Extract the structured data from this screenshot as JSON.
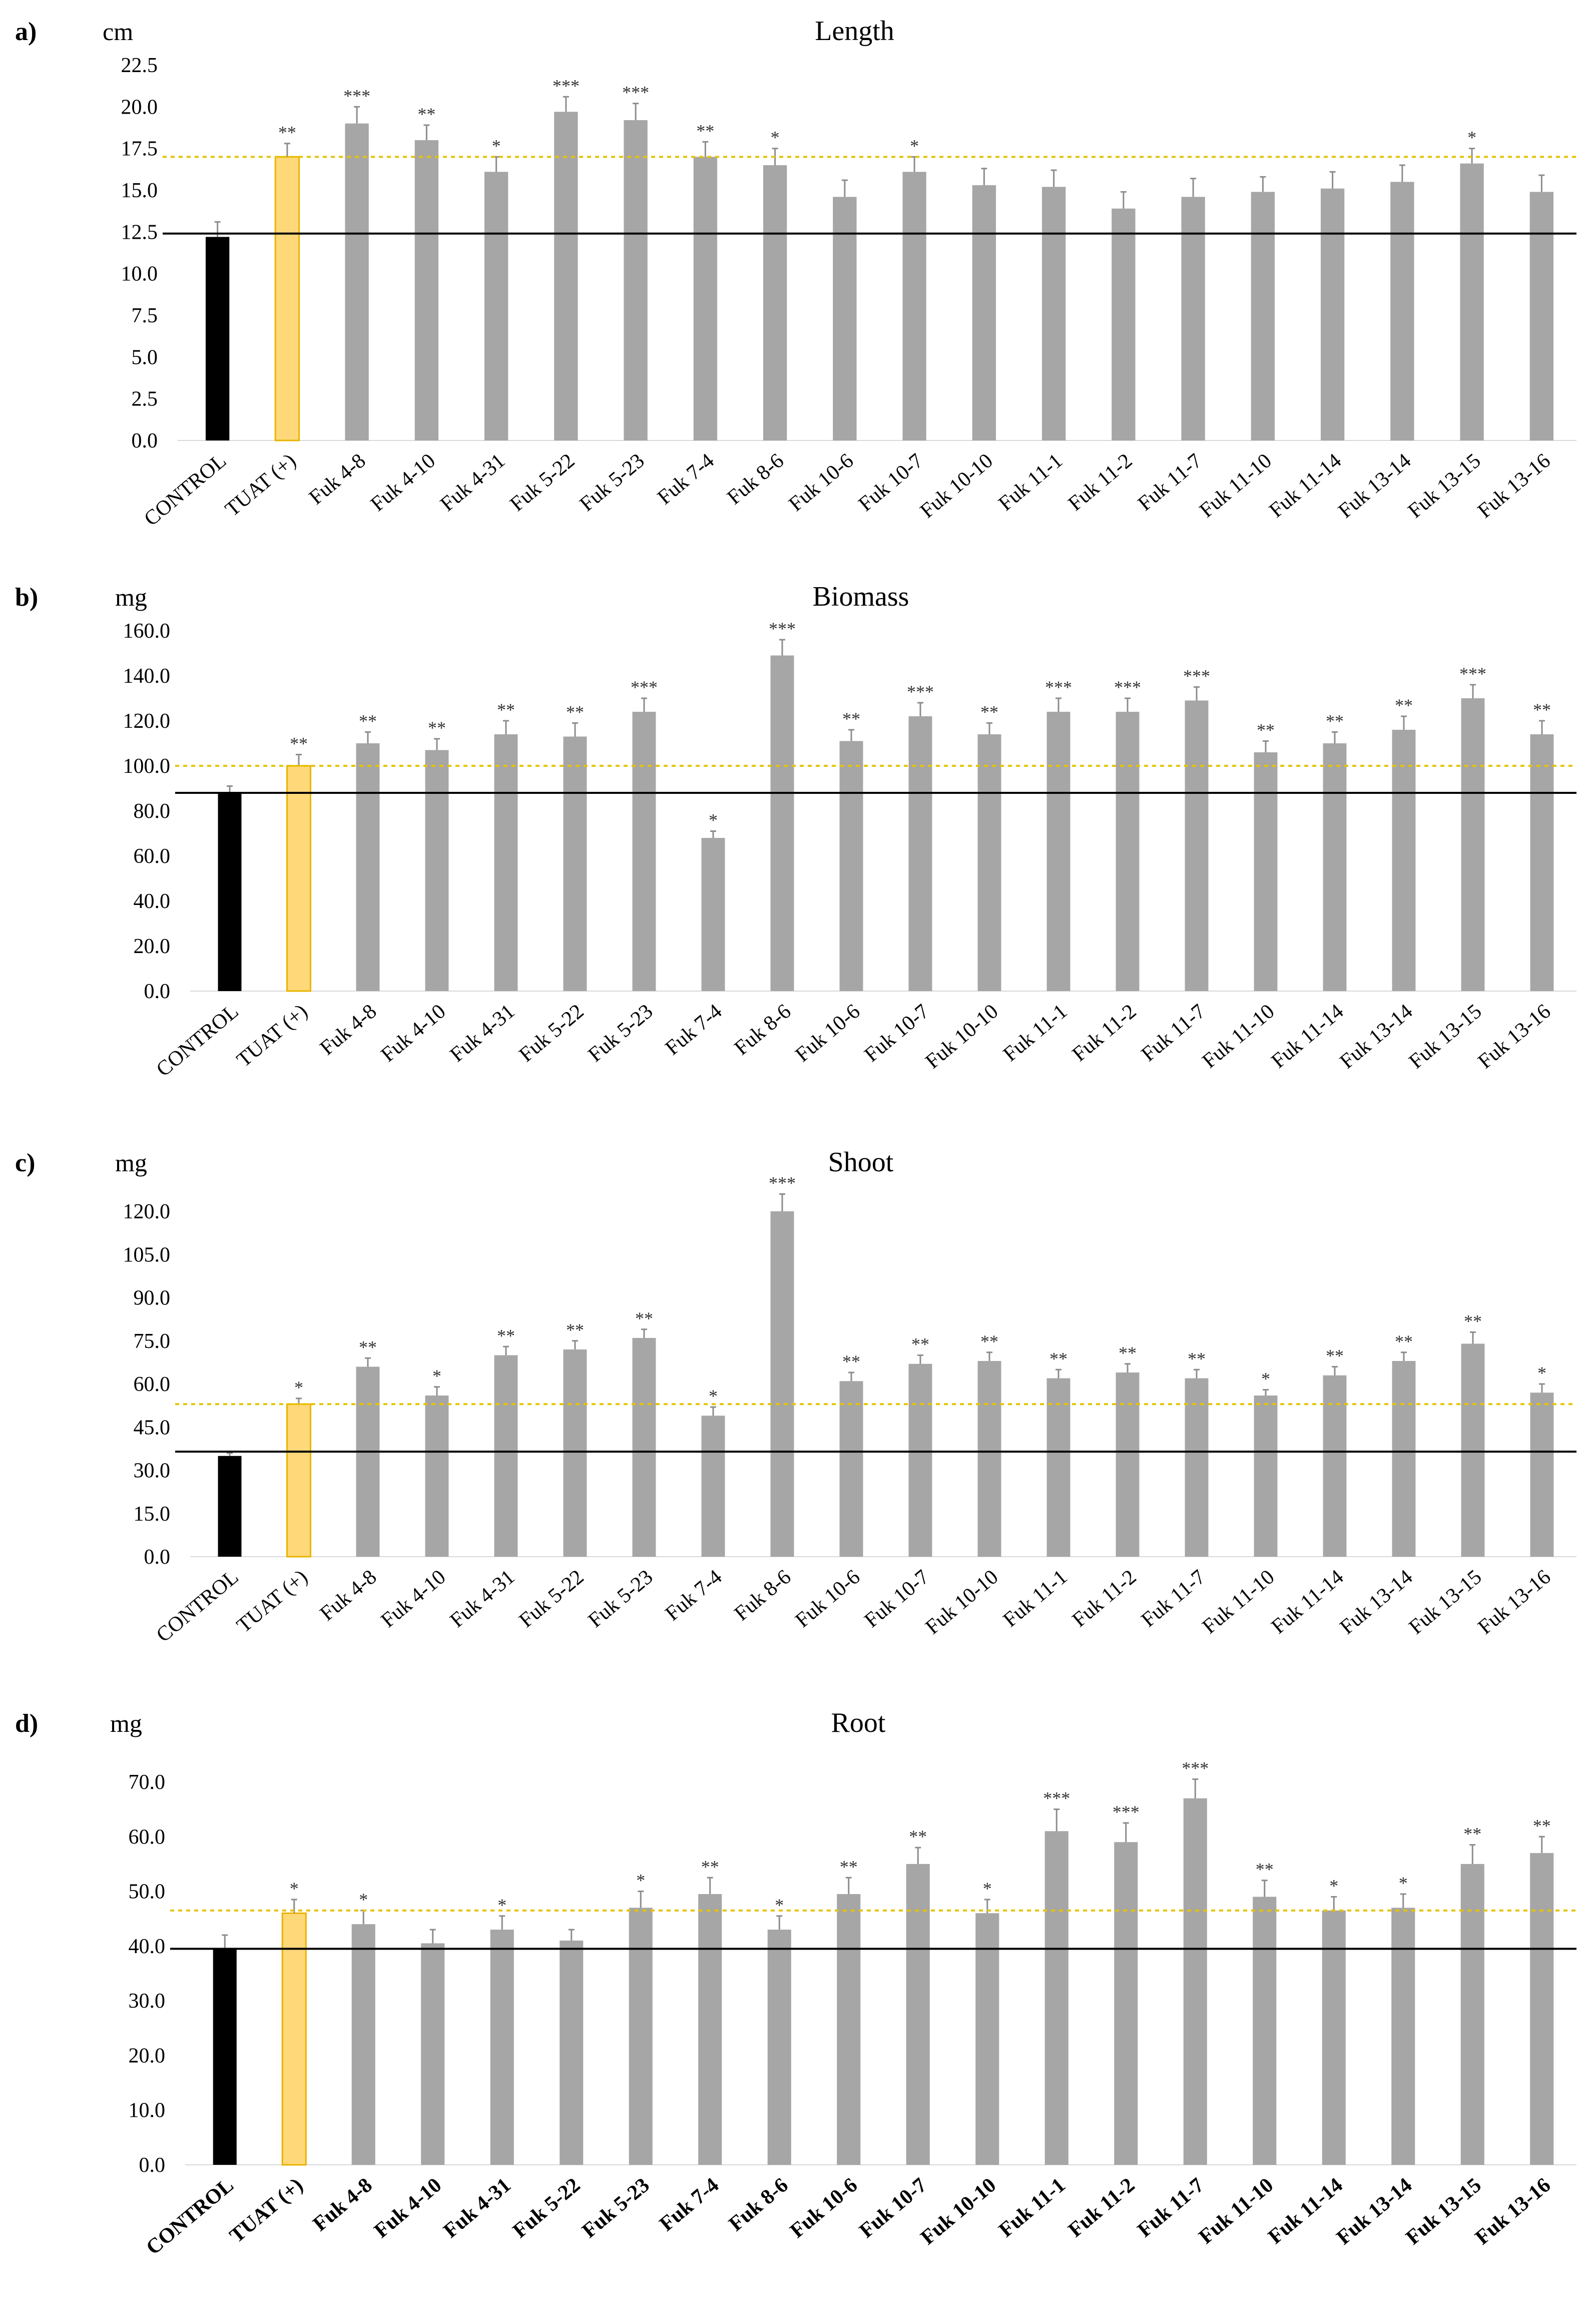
{
  "colors": {
    "control": "#000000",
    "positive": "#FFD87A",
    "positive_edge": "#E8B400",
    "strain": "#A6A6A6",
    "error_bar": "#8C8C8C",
    "control_line": "#000000",
    "positive_line": "#E6C300"
  },
  "chart_data": [
    {
      "panel": "a)",
      "type": "bar",
      "title": "Length",
      "ylabel": "cm",
      "ylim": [
        0,
        22.5
      ],
      "yticks": [
        0,
        2.5,
        5,
        7.5,
        10,
        12.5,
        15,
        17.5,
        20,
        22.5
      ],
      "ytick_decimals": 1,
      "bold_x_labels": false,
      "categories": [
        "CONTROL",
        "TUAT (+)",
        "Fuk 4-8",
        "Fuk 4-10",
        "Fuk 4-31",
        "Fuk 5-22",
        "Fuk 5-23",
        "Fuk 7-4",
        "Fuk 8-6",
        "Fuk 10-6",
        "Fuk 10-7",
        "Fuk 10-10",
        "Fuk 11-1",
        "Fuk 11-2",
        "Fuk 11-7",
        "Fuk 11-10",
        "Fuk 11-14",
        "Fuk 13-14",
        "Fuk 13-15",
        "Fuk 13-16"
      ],
      "values": [
        12.2,
        17.0,
        19.0,
        18.0,
        16.1,
        19.7,
        19.2,
        17.0,
        16.5,
        14.6,
        16.1,
        15.3,
        15.2,
        13.9,
        14.6,
        14.9,
        15.1,
        15.5,
        16.6,
        14.9
      ],
      "errors": [
        0.9,
        0.8,
        1.0,
        0.9,
        0.9,
        0.9,
        1.0,
        0.9,
        1.0,
        1.0,
        0.9,
        1.0,
        1.0,
        1.0,
        1.1,
        0.9,
        1.0,
        1.0,
        0.9,
        1.0
      ],
      "significance": [
        "",
        "**",
        "***",
        "**",
        "*",
        "***",
        "***",
        "**",
        "*",
        "",
        "*",
        "",
        "",
        "",
        "",
        "",
        "",
        "",
        "*",
        ""
      ],
      "control_line": 12.4,
      "positive_line": 17.0
    },
    {
      "panel": "b)",
      "type": "bar",
      "title": "Biomass",
      "ylabel": "mg",
      "ylim": [
        0,
        160
      ],
      "yticks": [
        0,
        20,
        40,
        60,
        80,
        100,
        120,
        140,
        160
      ],
      "ytick_decimals": 1,
      "bold_x_labels": false,
      "categories": [
        "CONTROL",
        "TUAT (+)",
        "Fuk 4-8",
        "Fuk 4-10",
        "Fuk 4-31",
        "Fuk 5-22",
        "Fuk 5-23",
        "Fuk 7-4",
        "Fuk 8-6",
        "Fuk 10-6",
        "Fuk 10-7",
        "Fuk 10-10",
        "Fuk 11-1",
        "Fuk 11-2",
        "Fuk 11-7",
        "Fuk 11-10",
        "Fuk 11-14",
        "Fuk 13-14",
        "Fuk 13-15",
        "Fuk 13-16"
      ],
      "values": [
        88,
        100,
        110,
        107,
        114,
        113,
        124,
        68,
        149,
        111,
        122,
        114,
        124,
        124,
        129,
        106,
        110,
        116,
        130,
        114
      ],
      "errors": [
        3,
        5,
        5,
        5,
        6,
        6,
        6,
        3,
        7,
        5,
        6,
        5,
        6,
        6,
        6,
        5,
        5,
        6,
        6,
        6
      ],
      "significance": [
        "",
        "**",
        "**",
        "**",
        "**",
        "**",
        "***",
        "*",
        "***",
        "**",
        "***",
        "**",
        "***",
        "***",
        "***",
        "**",
        "**",
        "**",
        "***",
        "**"
      ],
      "control_line": 88,
      "positive_line": 100
    },
    {
      "panel": "c)",
      "type": "bar",
      "title": "Shoot",
      "ylabel": "mg",
      "ylim": [
        0,
        120
      ],
      "yticks": [
        0,
        15,
        30,
        45,
        60,
        75,
        90,
        105,
        120
      ],
      "ytick_decimals": 1,
      "bold_x_labels": false,
      "categories": [
        "CONTROL",
        "TUAT (+)",
        "Fuk 4-8",
        "Fuk 4-10",
        "Fuk 4-31",
        "Fuk 5-22",
        "Fuk 5-23",
        "Fuk 7-4",
        "Fuk 8-6",
        "Fuk 10-6",
        "Fuk 10-7",
        "Fuk 10-10",
        "Fuk 11-1",
        "Fuk 11-2",
        "Fuk 11-7",
        "Fuk 11-10",
        "Fuk 11-14",
        "Fuk 13-14",
        "Fuk 13-15",
        "Fuk 13-16"
      ],
      "values": [
        35,
        53,
        66,
        56,
        70,
        72,
        76,
        49,
        120,
        61,
        67,
        68,
        62,
        64,
        62,
        56,
        63,
        68,
        74,
        57
      ],
      "errors": [
        1,
        2,
        3,
        3,
        3,
        3,
        3,
        3,
        6,
        3,
        3,
        3,
        3,
        3,
        3,
        2,
        3,
        3,
        4,
        3
      ],
      "significance": [
        "",
        "*",
        "**",
        "*",
        "**",
        "**",
        "**",
        "*",
        "***",
        "**",
        "**",
        "**",
        "**",
        "**",
        "**",
        "*",
        "**",
        "**",
        "**",
        "*"
      ],
      "control_line": 36.5,
      "positive_line": 53
    },
    {
      "panel": "d)",
      "type": "bar",
      "title": "Root",
      "ylabel": "mg",
      "ylim": [
        0,
        70
      ],
      "yticks": [
        0,
        10,
        20,
        30,
        40,
        50,
        60,
        70
      ],
      "ytick_decimals": 1,
      "bold_x_labels": true,
      "categories": [
        "CONTROL",
        "TUAT (+)",
        "Fuk 4-8",
        "Fuk 4-10",
        "Fuk 4-31",
        "Fuk 5-22",
        "Fuk 5-23",
        "Fuk 7-4",
        "Fuk 8-6",
        "Fuk 10-6",
        "Fuk 10-7",
        "Fuk 10-10",
        "Fuk 11-1",
        "Fuk 11-2",
        "Fuk 11-7",
        "Fuk 11-10",
        "Fuk 11-14",
        "Fuk 13-14",
        "Fuk 13-15",
        "Fuk 13-16"
      ],
      "values": [
        39.5,
        46,
        44,
        40.5,
        43,
        41,
        47,
        49.5,
        43,
        49.5,
        55,
        46,
        61,
        59,
        67,
        49,
        46.5,
        47,
        55,
        57
      ],
      "errors": [
        2.5,
        2.5,
        2.5,
        2.5,
        2.5,
        2,
        3,
        3,
        2.5,
        3,
        3,
        2.5,
        4,
        3.5,
        3.5,
        3,
        2.5,
        2.5,
        3.5,
        3
      ],
      "significance": [
        "",
        "*",
        "*",
        "",
        "*",
        "",
        "*",
        "**",
        "*",
        "**",
        "**",
        "*",
        "***",
        "***",
        "***",
        "**",
        "*",
        "*",
        "**",
        "**"
      ],
      "control_line": 39.5,
      "positive_line": 46.5
    }
  ]
}
